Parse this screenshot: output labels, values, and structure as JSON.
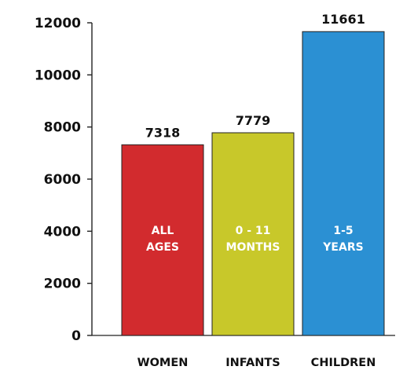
{
  "chart_data": {
    "type": "bar",
    "title": "",
    "xlabel": "",
    "ylabel": "",
    "ylim": [
      0,
      12000
    ],
    "yticks": [
      0,
      2000,
      4000,
      6000,
      8000,
      10000,
      12000
    ],
    "grid": false,
    "categories": [
      "WOMEN",
      "INFANTS",
      "CHILDREN"
    ],
    "values": [
      7318,
      7779,
      11661
    ],
    "value_labels": [
      "7318",
      "7779",
      "11661"
    ],
    "bar_labels": [
      [
        "ALL",
        "AGES"
      ],
      [
        "0 - 11",
        "MONTHS"
      ],
      [
        "1-5",
        "YEARS"
      ]
    ],
    "colors": [
      "#d22b2e",
      "#c8c82a",
      "#2b90d3"
    ]
  }
}
